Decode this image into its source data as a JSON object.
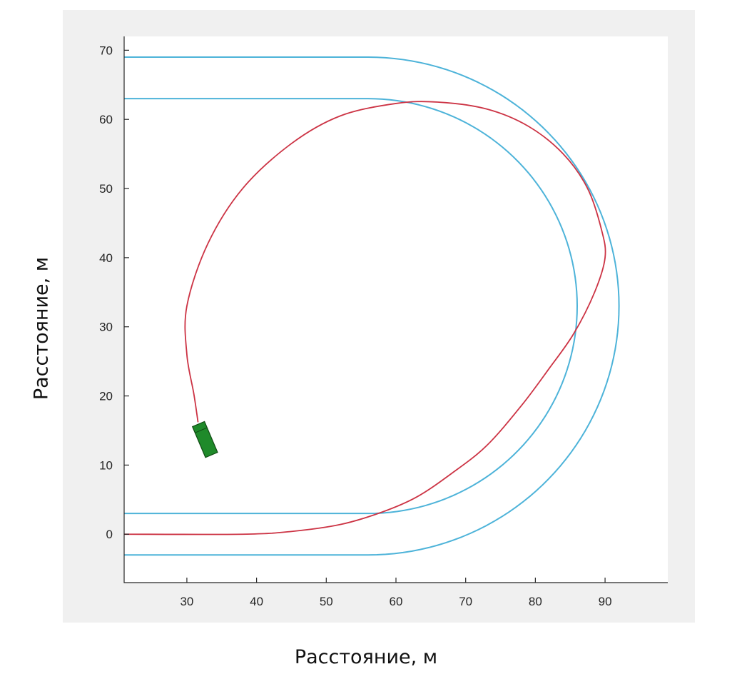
{
  "chart_data": {
    "type": "line",
    "title": "",
    "xlabel": "Расстояние, м",
    "ylabel": "Расстояние, м",
    "xlim": [
      21,
      99
    ],
    "ylim": [
      -7,
      72
    ],
    "xticks": [
      30,
      40,
      50,
      60,
      70,
      80,
      90
    ],
    "yticks": [
      0,
      10,
      20,
      30,
      40,
      50,
      60,
      70
    ],
    "grid": false,
    "legend": "none",
    "colors": {
      "lane_boundary": "#4db3d9",
      "path": "#cc3344",
      "vehicle_fill": "#1f8a2a",
      "vehicle_stroke": "#0f4a12",
      "axis": "#262626",
      "panel_background": "#f0f0f0"
    },
    "series": [
      {
        "kind": "lane_boundary",
        "segments": [
          {
            "type": "straight",
            "from": [
              21,
              69
            ],
            "to": [
              56,
              69
            ]
          },
          {
            "type": "arc",
            "center": [
              56,
              33
            ],
            "radius": 36,
            "from_deg": 90,
            "to_deg": -90
          },
          {
            "type": "straight",
            "from": [
              56,
              -3
            ],
            "to": [
              21,
              -3
            ]
          }
        ]
      },
      {
        "kind": "lane_boundary",
        "segments": [
          {
            "type": "straight",
            "from": [
              21,
              63
            ],
            "to": [
              56,
              63
            ]
          },
          {
            "type": "arc",
            "center": [
              56,
              33
            ],
            "radius": 30,
            "from_deg": 90,
            "to_deg": -90
          },
          {
            "type": "straight",
            "from": [
              56,
              3
            ],
            "to": [
              21,
              3
            ]
          }
        ]
      },
      {
        "kind": "path",
        "points": [
          [
            21,
            0
          ],
          [
            38,
            0
          ],
          [
            45,
            0.4
          ],
          [
            52,
            1.4
          ],
          [
            58,
            3.2
          ],
          [
            63,
            5.4
          ],
          [
            68,
            8.8
          ],
          [
            73,
            12.8
          ],
          [
            78,
            18.6
          ],
          [
            82,
            24
          ],
          [
            85.5,
            29
          ],
          [
            88.5,
            35
          ],
          [
            90,
            40
          ],
          [
            89.5,
            44
          ],
          [
            87.5,
            50
          ],
          [
            84,
            55
          ],
          [
            79,
            59
          ],
          [
            73,
            61.5
          ],
          [
            66,
            62.5
          ],
          [
            60,
            62.3
          ],
          [
            52,
            60.5
          ],
          [
            45,
            56.5
          ],
          [
            38,
            50
          ],
          [
            33,
            42
          ],
          [
            30,
            33
          ],
          [
            30,
            26
          ],
          [
            31,
            20.3
          ],
          [
            31.6,
            16.2
          ]
        ]
      }
    ],
    "vehicle": {
      "center": [
        32.6,
        13.7
      ],
      "heading_deg": -67,
      "length": 4.8,
      "width": 1.9
    }
  }
}
